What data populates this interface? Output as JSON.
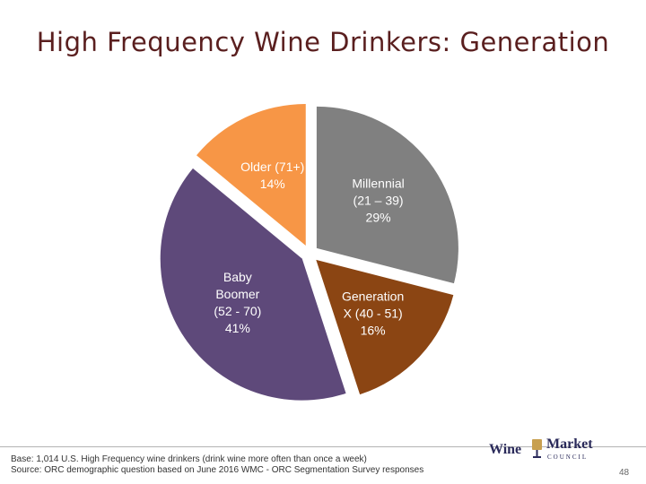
{
  "title": "High Frequency Wine Drinkers: Generation",
  "chart_data": {
    "type": "pie",
    "title": "High Frequency Wine Drinkers: Generation",
    "slices": [
      {
        "label_lines": [
          "Millennial",
          "(21 – 39)",
          "29%"
        ],
        "value": 29,
        "color": "#808080",
        "text_color": "#ffffff"
      },
      {
        "label_lines": [
          "Generation",
          "X (40 - 51)",
          "16%"
        ],
        "value": 16,
        "color": "#8b4513",
        "text_color": "#ffffff"
      },
      {
        "label_lines": [
          "Baby",
          "Boomer",
          "(52 - 70)",
          "41%"
        ],
        "value": 41,
        "color": "#5e497a",
        "text_color": "#ffffff"
      },
      {
        "label_lines": [
          "Older (71+)",
          "14%"
        ],
        "value": 14,
        "color": "#f79646",
        "text_color": "#ffffff"
      }
    ]
  },
  "footnote": {
    "line1": "Base: 1,014 U.S. High Frequency wine drinkers (drink wine more often than once a week)",
    "line2": "Source: ORC demographic question based on June 2016 WMC - ORC Segmentation Survey responses"
  },
  "logo": {
    "wine": "Wine",
    "market": "Market",
    "council": "COUNCIL",
    "glass_color": "#c8a050"
  },
  "page_number": "48"
}
